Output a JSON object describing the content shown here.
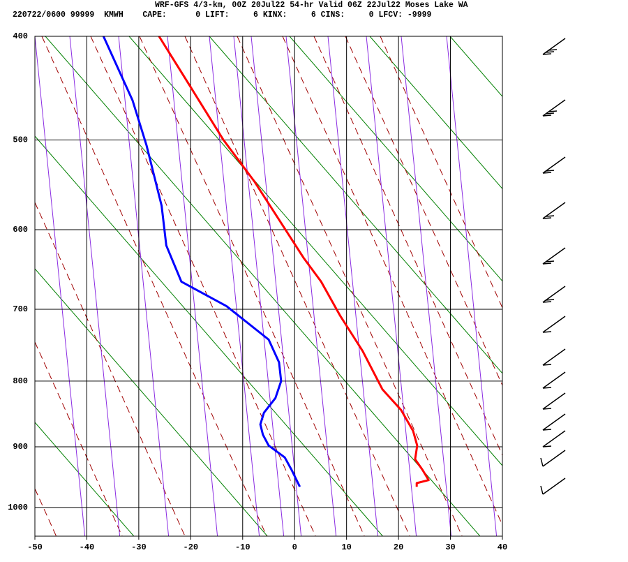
{
  "chart_data": {
    "type": "skewt",
    "title": "WRF-GFS 4/3-km, 00Z 20Jul22 54-hr Valid 06Z 22Jul22 Moses Lake WA",
    "subtitle": "220722/0600 99999  KMWH    CAPE:      0 LIFT:     6 KINX:     6 CINS:     0 LFCV: -9999",
    "xlim": [
      -50,
      40
    ],
    "xticks": [
      -50,
      -40,
      -30,
      -20,
      -10,
      0,
      10,
      20,
      30,
      40
    ],
    "ylim": [
      1050,
      400
    ],
    "yticks": [
      400,
      500,
      600,
      700,
      800,
      900,
      1000
    ],
    "grid": true,
    "series": [
      {
        "color": "#ff0000",
        "temperature": [
          -26.1,
          -20.4,
          -13.7,
          -7.7,
          1.7,
          5.1,
          8.8,
          13.1,
          16.9,
          20.5,
          22.8,
          23.6,
          23.2,
          24.6,
          25.8,
          23.5,
          23.5
        ],
        "pressure": [
          400,
          444,
          500,
          545,
          634,
          664,
          709,
          757,
          812,
          843,
          875,
          898,
          920,
          937,
          954,
          959,
          965
        ]
      },
      {
        "color": "#0000ff",
        "temperature": [
          -36.8,
          -31.2,
          -28.5,
          -25.6,
          -24.7,
          -21.8,
          -13.1,
          -5.0,
          -3.0,
          -2.6,
          -3.7,
          -5.9,
          -6.6,
          -6.1,
          -5.0,
          -1.9,
          -0.6,
          1.0
        ],
        "pressure": [
          400,
          460,
          506,
          572,
          619,
          664,
          696,
          741,
          773,
          800,
          825,
          847,
          865,
          881,
          898,
          917,
          937,
          965
        ]
      }
    ]
  }
}
